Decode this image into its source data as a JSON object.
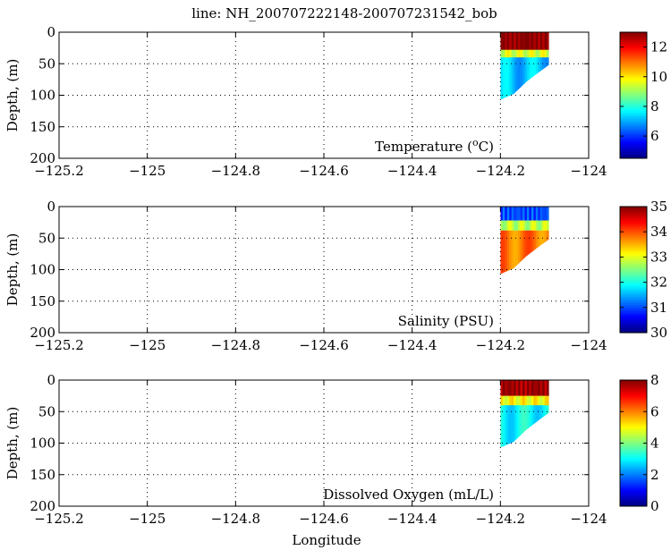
{
  "figure": {
    "title": "line: NH_200707222148-200707231542_bob",
    "xlabel": "Longitude"
  },
  "chart_data": [
    {
      "type": "heatmap",
      "panel_label": "Temperature (",
      "panel_label_sup": "o",
      "panel_label_tail": "C)",
      "ylabel": "Depth, (m)",
      "xlim": [
        -125.2,
        -124.0
      ],
      "ylim": [
        200,
        0
      ],
      "x_ticks": [
        "−125.2",
        "−125",
        "−124.8",
        "−124.6",
        "−124.4",
        "−124.2",
        "−124"
      ],
      "y_ticks": [
        "0",
        "50",
        "100",
        "150",
        "200"
      ],
      "grid": "dotted",
      "colorbar": {
        "range": [
          4.5,
          13
        ],
        "ticks": [
          "12",
          "10",
          "8",
          "6"
        ],
        "colormap": "jet"
      },
      "section": {
        "lon_range": [
          -124.2,
          -124.09
        ],
        "bottom_depth": [
          {
            "lon": -124.2,
            "depth": 107
          },
          {
            "lon": -124.17,
            "depth": 98
          },
          {
            "lon": -124.14,
            "depth": 78
          },
          {
            "lon": -124.11,
            "depth": 62
          },
          {
            "lon": -124.09,
            "depth": 52
          }
        ],
        "layers": [
          {
            "depth_top": 0,
            "depth_bottom": 28,
            "value": 13
          },
          {
            "depth_top": 28,
            "depth_bottom": 40,
            "value": 9.5
          },
          {
            "depth_top": 40,
            "depth_bottom": 200,
            "value": 7.2
          }
        ]
      }
    },
    {
      "type": "heatmap",
      "panel_label": "Salinity (PSU)",
      "ylabel": "Depth, (m)",
      "xlim": [
        -125.2,
        -124.0
      ],
      "ylim": [
        200,
        0
      ],
      "x_ticks": [
        "−125.2",
        "−125",
        "−124.8",
        "−124.6",
        "−124.4",
        "−124.2",
        "−124"
      ],
      "y_ticks": [
        "0",
        "50",
        "100",
        "150",
        "200"
      ],
      "grid": "dotted",
      "colorbar": {
        "range": [
          30,
          35
        ],
        "ticks": [
          "35",
          "34",
          "33",
          "32",
          "31",
          "30"
        ],
        "colormap": "jet"
      },
      "section": {
        "lon_range": [
          -124.2,
          -124.09
        ],
        "bottom_depth": [
          {
            "lon": -124.2,
            "depth": 107
          },
          {
            "lon": -124.17,
            "depth": 98
          },
          {
            "lon": -124.14,
            "depth": 78
          },
          {
            "lon": -124.11,
            "depth": 62
          },
          {
            "lon": -124.09,
            "depth": 52
          }
        ],
        "layers": [
          {
            "depth_top": 0,
            "depth_bottom": 22,
            "value": 31.0
          },
          {
            "depth_top": 22,
            "depth_bottom": 38,
            "value": 32.8
          },
          {
            "depth_top": 38,
            "depth_bottom": 200,
            "value": 33.8
          }
        ]
      }
    },
    {
      "type": "heatmap",
      "panel_label": "Dissolved Oxygen (mL/L)",
      "ylabel": "Depth, (m)",
      "xlim": [
        -125.2,
        -124.0
      ],
      "ylim": [
        200,
        0
      ],
      "x_ticks": [
        "−125.2",
        "−125",
        "−124.8",
        "−124.6",
        "−124.4",
        "−124.2",
        "−124"
      ],
      "y_ticks": [
        "0",
        "50",
        "100",
        "150",
        "200"
      ],
      "grid": "dotted",
      "colorbar": {
        "range": [
          0,
          8
        ],
        "ticks": [
          "8",
          "6",
          "4",
          "2",
          "0"
        ],
        "colormap": "jet"
      },
      "section": {
        "lon_range": [
          -124.2,
          -124.09
        ],
        "bottom_depth": [
          {
            "lon": -124.2,
            "depth": 107
          },
          {
            "lon": -124.17,
            "depth": 98
          },
          {
            "lon": -124.14,
            "depth": 78
          },
          {
            "lon": -124.11,
            "depth": 62
          },
          {
            "lon": -124.09,
            "depth": 52
          }
        ],
        "layers": [
          {
            "depth_top": 0,
            "depth_bottom": 25,
            "value": 7.8
          },
          {
            "depth_top": 25,
            "depth_bottom": 40,
            "value": 5.0
          },
          {
            "depth_top": 40,
            "depth_bottom": 200,
            "value": 3.0
          }
        ]
      }
    }
  ]
}
